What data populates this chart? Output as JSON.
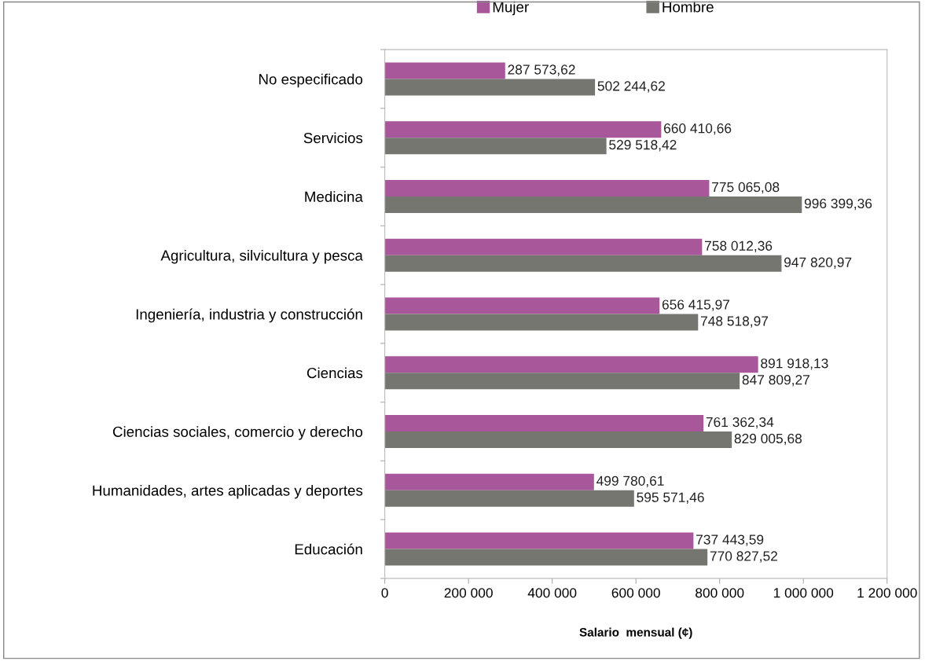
{
  "chart_data": {
    "type": "bar",
    "orientation": "horizontal",
    "xlabel": "Salario  mensual (¢)",
    "categories": [
      "No especificado",
      "Servicios",
      "Medicina",
      "Agricultura, silvicultura y pesca",
      "Ingeniería, industria y construcción",
      "Ciencias",
      "Ciencias sociales, comercio y derecho",
      "Humanidades, artes aplicadas y deportes",
      "Educación"
    ],
    "series": [
      {
        "name": "Mujer",
        "color": "#a9579b",
        "values": [
          287573.62,
          660410.66,
          775065.08,
          758012.36,
          656415.97,
          891918.13,
          761362.34,
          499780.61,
          737443.59
        ],
        "value_labels": [
          "287 573,62",
          "660 410,66",
          "775 065,08",
          "758 012,36",
          "656 415,97",
          "891 918,13",
          "761 362,34",
          "499 780,61",
          "737 443,59"
        ]
      },
      {
        "name": "Hombre",
        "color": "#767670",
        "values": [
          502244.62,
          529518.42,
          996399.36,
          947820.97,
          748518.97,
          847809.27,
          829005.68,
          595571.46,
          770827.52
        ],
        "value_labels": [
          "502 244,62",
          "529 518,42",
          "996 399,36",
          "947 820,97",
          "748 518,97",
          "847 809,27",
          "829 005,68",
          "595 571,46",
          "770 827,52"
        ]
      }
    ],
    "xlim": [
      0,
      1200000
    ],
    "xticks": [
      0,
      {
        "value": 200000,
        "label": "200 000"
      },
      {
        "value": 400000,
        "label": "400 000"
      },
      {
        "value": 600000,
        "label": "600 000"
      },
      {
        "value": 800000,
        "label": "800 000"
      },
      {
        "value": 1000000,
        "label": "1 000 000"
      },
      {
        "value": 1200000,
        "label": "1 200 000"
      }
    ],
    "legend": "top",
    "grid": false
  }
}
